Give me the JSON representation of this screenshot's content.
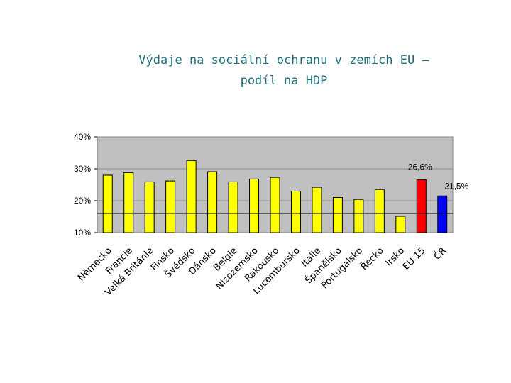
{
  "title": {
    "line1": "Výdaje na sociální ochranu v zemích EU –",
    "line2": "podíl na HDP"
  },
  "chart_data": {
    "type": "bar",
    "title": "Výdaje na sociální ochranu v zemích EU – podíl na HDP",
    "xlabel": "",
    "ylabel": "",
    "ylim": [
      10,
      40
    ],
    "yticks": [
      "10%",
      "20%",
      "30%",
      "40%"
    ],
    "reference_line": 16,
    "categories": [
      "Německo",
      "Francie",
      "Velká Británie",
      "Finsko",
      "Švédsko",
      "Dánsko",
      "Belgie",
      "Nizozemsko",
      "Rakousko",
      "Lucembursko",
      "Itálie",
      "Španělsko",
      "Portugalsko",
      "Řecko",
      "Irsko",
      "EU 15",
      "ČR"
    ],
    "values": [
      28,
      28.8,
      25.9,
      26.2,
      32.6,
      29.1,
      25.9,
      26.8,
      27.3,
      23,
      24.2,
      21,
      20.4,
      23.5,
      15.1,
      26.6,
      21.5
    ],
    "colors": [
      "#ffff00",
      "#ffff00",
      "#ffff00",
      "#ffff00",
      "#ffff00",
      "#ffff00",
      "#ffff00",
      "#ffff00",
      "#ffff00",
      "#ffff00",
      "#ffff00",
      "#ffff00",
      "#ffff00",
      "#ffff00",
      "#ffff00",
      "#ff0000",
      "#0000ff"
    ],
    "data_labels": [
      {
        "index": 15,
        "text": "26,6%"
      },
      {
        "index": 16,
        "text": "21,5%"
      }
    ],
    "plot_background": "#c0c0c0",
    "grid": true
  }
}
